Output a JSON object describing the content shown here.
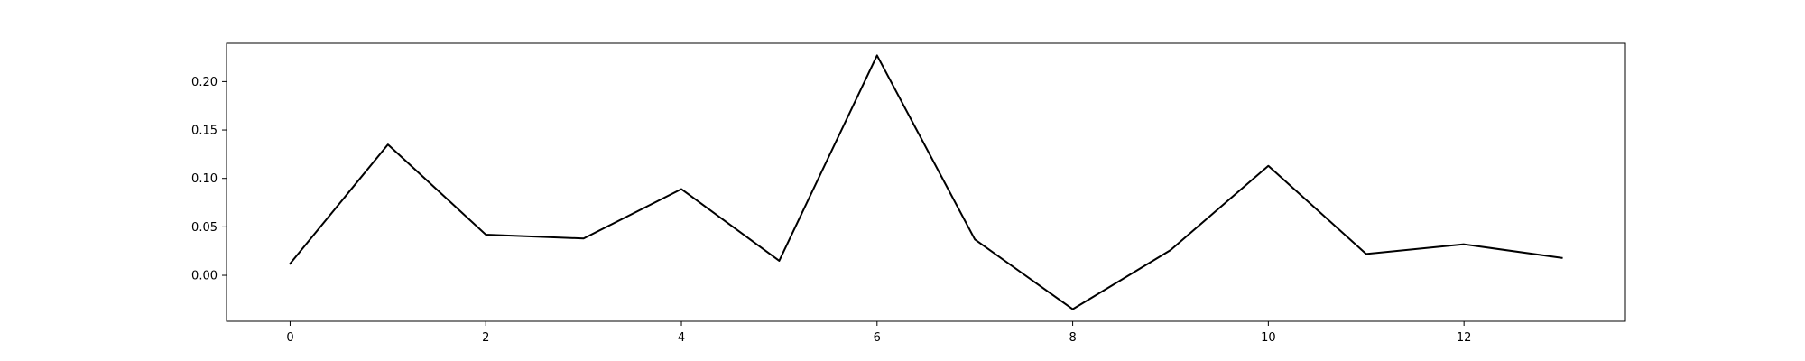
{
  "chart_data": {
    "type": "line",
    "title": "",
    "xlabel": "",
    "ylabel": "",
    "x": [
      0,
      1,
      2,
      3,
      4,
      5,
      6,
      7,
      8,
      9,
      10,
      11,
      12,
      13
    ],
    "series": [
      {
        "values": [
          0.012,
          0.135,
          0.042,
          0.038,
          0.089,
          0.015,
          0.227,
          0.037,
          -0.035,
          0.026,
          0.113,
          0.022,
          0.032,
          0.018
        ],
        "color": "#000000"
      }
    ],
    "xlim": [
      -0.65,
      13.65
    ],
    "ylim": [
      -0.0475,
      0.2395
    ],
    "xticks": [
      0,
      2,
      4,
      6,
      8,
      10,
      12
    ],
    "xtick_labels": [
      "0",
      "2",
      "4",
      "6",
      "8",
      "10",
      "12"
    ],
    "yticks": [
      0.0,
      0.05,
      0.1,
      0.15,
      0.2
    ],
    "ytick_labels": [
      "0.00",
      "0.05",
      "0.10",
      "0.15",
      "0.20"
    ],
    "grid": false,
    "legend": "none"
  }
}
